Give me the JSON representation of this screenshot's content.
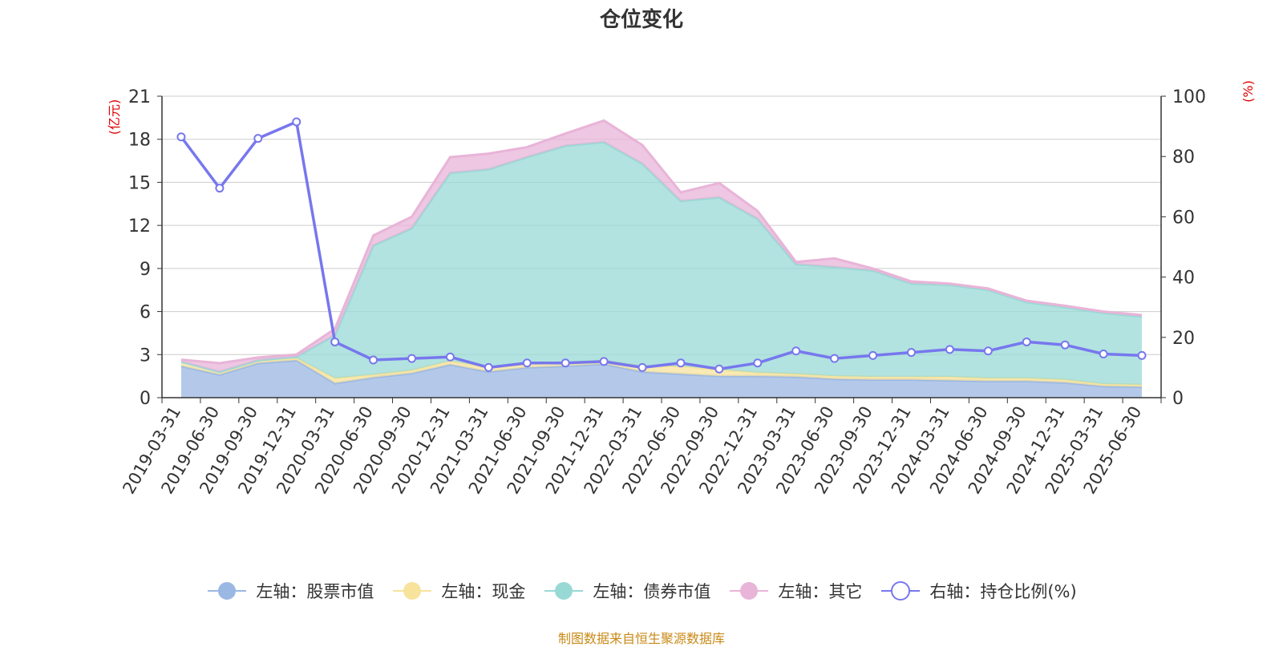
{
  "chart_data": {
    "type": "area",
    "title": "仓位变化",
    "left_axis": {
      "unit": "(亿元)",
      "ylim": [
        0,
        21
      ],
      "ticks": [
        "0",
        "3",
        "6",
        "9",
        "12",
        "15",
        "18",
        "21"
      ]
    },
    "right_axis": {
      "unit": "(%)",
      "ylim": [
        0,
        100
      ],
      "ticks": [
        "0",
        "20",
        "40",
        "60",
        "80",
        "100"
      ]
    },
    "grid": true,
    "legend_position": "bottom",
    "categories": [
      "2019-03-31",
      "2019-06-30",
      "2019-09-30",
      "2019-12-31",
      "2020-03-31",
      "2020-06-30",
      "2020-09-30",
      "2020-12-31",
      "2021-03-31",
      "2021-06-30",
      "2021-09-30",
      "2021-12-31",
      "2022-03-31",
      "2022-06-30",
      "2022-09-30",
      "2022-12-31",
      "2023-03-31",
      "2023-06-30",
      "2023-09-30",
      "2023-12-31",
      "2024-03-31",
      "2024-06-30",
      "2024-09-30",
      "2024-12-31",
      "2025-03-31",
      "2025-06-30"
    ],
    "series": [
      {
        "name": "左轴：股票市值",
        "axis": "left",
        "stack": true,
        "color": "#9bb7e3",
        "values": [
          2.2,
          1.6,
          2.4,
          2.6,
          1.0,
          1.4,
          1.7,
          2.3,
          1.8,
          2.1,
          2.2,
          2.35,
          1.8,
          1.65,
          1.5,
          1.5,
          1.45,
          1.3,
          1.25,
          1.25,
          1.2,
          1.15,
          1.15,
          1.05,
          0.8,
          0.75
        ]
      },
      {
        "name": "左轴：现金",
        "axis": "left",
        "stack": true,
        "color": "#f7e39c",
        "values": [
          0.3,
          0.2,
          0.2,
          0.15,
          0.35,
          0.2,
          0.2,
          0.25,
          0.3,
          0.25,
          0.25,
          0.2,
          0.4,
          0.55,
          0.45,
          0.25,
          0.2,
          0.2,
          0.2,
          0.2,
          0.25,
          0.2,
          0.2,
          0.2,
          0.15,
          0.15
        ]
      },
      {
        "name": "左轴：债券市值",
        "axis": "left",
        "stack": true,
        "color": "#98d9d6",
        "values": [
          0.0,
          0.0,
          0.0,
          0.1,
          3.0,
          9.0,
          9.9,
          13.1,
          13.8,
          14.4,
          15.1,
          15.25,
          14.1,
          11.5,
          12.0,
          10.7,
          7.65,
          7.6,
          7.4,
          6.5,
          6.4,
          6.15,
          5.3,
          5.05,
          4.95,
          4.75
        ]
      },
      {
        "name": "左轴：其它",
        "axis": "left",
        "stack": true,
        "color": "#e8b4d8",
        "values": [
          0.15,
          0.6,
          0.2,
          0.15,
          0.45,
          0.7,
          0.8,
          1.1,
          1.1,
          0.7,
          0.85,
          1.5,
          1.3,
          0.6,
          1.0,
          0.55,
          0.15,
          0.6,
          0.15,
          0.15,
          0.1,
          0.1,
          0.1,
          0.1,
          0.1,
          0.1
        ]
      },
      {
        "name": "右轴：持仓比例(%)",
        "axis": "right",
        "stack": false,
        "color": "#7777ee",
        "values": [
          86.5,
          69.5,
          86.0,
          91.5,
          18.5,
          12.5,
          13.0,
          13.5,
          10.0,
          11.5,
          11.5,
          12.0,
          10.0,
          11.5,
          9.5,
          11.5,
          15.5,
          13.0,
          14.0,
          15.0,
          16.0,
          15.5,
          18.5,
          17.5,
          14.5,
          14.0
        ]
      }
    ]
  },
  "footer": {
    "source": "制图数据来自恒生聚源数据库"
  }
}
